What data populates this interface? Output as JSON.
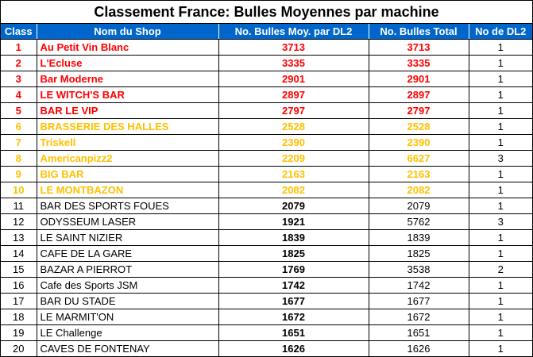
{
  "title": "Classement France: Bulles Moyennes par machine",
  "columns": {
    "rank": "Class",
    "shop": "Nom du Shop",
    "avg": "No. Bulles Moy. par DL2",
    "total": "No. Bulles Total",
    "dl2": "No de DL2"
  },
  "colors": {
    "header_bg": "#0066cc",
    "tier_top5": "#ff0000",
    "tier_top10": "#ffc000"
  },
  "rows": [
    {
      "rank": "1",
      "shop": "Au Petit Vin Blanc",
      "avg": "3713",
      "total": "3713",
      "dl2": "1",
      "tier": "red"
    },
    {
      "rank": "2",
      "shop": "L'Ecluse",
      "avg": "3335",
      "total": "3335",
      "dl2": "1",
      "tier": "red"
    },
    {
      "rank": "3",
      "shop": "Bar Moderne",
      "avg": "2901",
      "total": "2901",
      "dl2": "1",
      "tier": "red"
    },
    {
      "rank": "4",
      "shop": "LE WITCH'S BAR",
      "avg": "2897",
      "total": "2897",
      "dl2": "1",
      "tier": "red"
    },
    {
      "rank": "5",
      "shop": "BAR LE VIP",
      "avg": "2797",
      "total": "2797",
      "dl2": "1",
      "tier": "red"
    },
    {
      "rank": "6",
      "shop": "BRASSERIE DES HALLES",
      "avg": "2528",
      "total": "2528",
      "dl2": "1",
      "tier": "gold"
    },
    {
      "rank": "7",
      "shop": "Triskell",
      "avg": "2390",
      "total": "2390",
      "dl2": "1",
      "tier": "gold"
    },
    {
      "rank": "8",
      "shop": "Americanpizz2",
      "avg": "2209",
      "total": "6627",
      "dl2": "3",
      "tier": "gold"
    },
    {
      "rank": "9",
      "shop": "BIG BAR",
      "avg": "2163",
      "total": "2163",
      "dl2": "1",
      "tier": "gold"
    },
    {
      "rank": "10",
      "shop": "LE MONTBAZON",
      "avg": "2082",
      "total": "2082",
      "dl2": "1",
      "tier": "gold"
    },
    {
      "rank": "11",
      "shop": "BAR DES SPORTS FOUES",
      "avg": "2079",
      "total": "2079",
      "dl2": "1",
      "tier": "plain"
    },
    {
      "rank": "12",
      "shop": "ODYSSEUM LASER",
      "avg": "1921",
      "total": "5762",
      "dl2": "3",
      "tier": "plain"
    },
    {
      "rank": "13",
      "shop": "LE SAINT NIZIER",
      "avg": "1839",
      "total": "1839",
      "dl2": "1",
      "tier": "plain"
    },
    {
      "rank": "14",
      "shop": "CAFE DE LA GARE",
      "avg": "1825",
      "total": "1825",
      "dl2": "1",
      "tier": "plain"
    },
    {
      "rank": "15",
      "shop": "BAZAR A PIERROT",
      "avg": "1769",
      "total": "3538",
      "dl2": "2",
      "tier": "plain"
    },
    {
      "rank": "16",
      "shop": "Cafe des Sports JSM",
      "avg": "1742",
      "total": "1742",
      "dl2": "1",
      "tier": "plain"
    },
    {
      "rank": "17",
      "shop": "BAR DU STADE",
      "avg": "1677",
      "total": "1677",
      "dl2": "1",
      "tier": "plain"
    },
    {
      "rank": "18",
      "shop": "LE MARMIT'ON",
      "avg": "1672",
      "total": "1672",
      "dl2": "1",
      "tier": "plain"
    },
    {
      "rank": "19",
      "shop": "LE Challenge",
      "avg": "1651",
      "total": "1651",
      "dl2": "1",
      "tier": "plain"
    },
    {
      "rank": "20",
      "shop": "CAVES DE FONTENAY",
      "avg": "1626",
      "total": "1626",
      "dl2": "1",
      "tier": "plain"
    }
  ]
}
